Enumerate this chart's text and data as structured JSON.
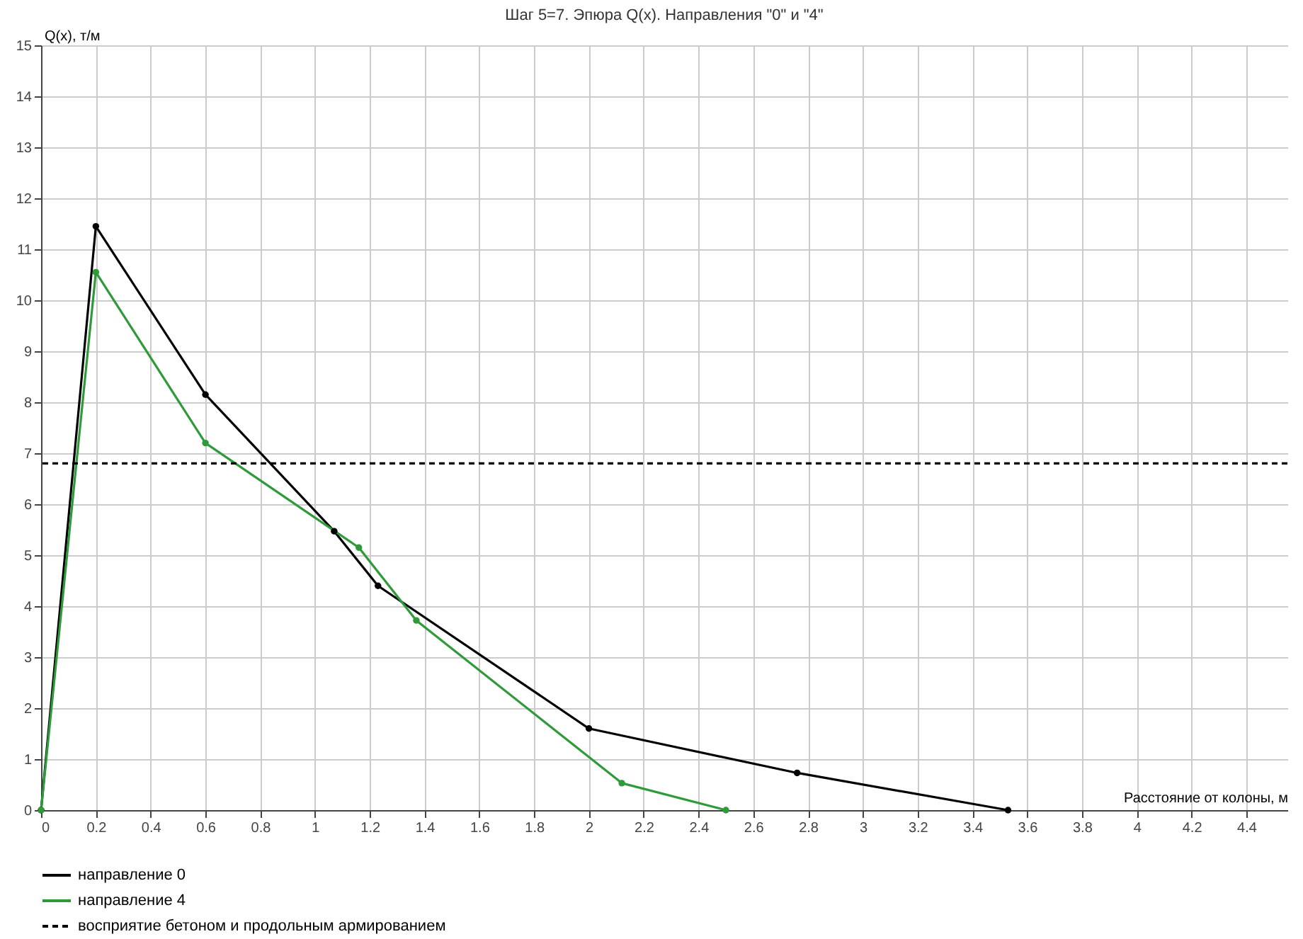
{
  "chart_data": {
    "type": "line",
    "title": "Шаг 5=7. Эпюра Q(x). Направления \"0\" и \"4\"",
    "xlabel": "Расстояние от колоны, м",
    "ylabel": "Q(x), т/м",
    "series": [
      {
        "name": "направление 0",
        "color": "#000000",
        "x": [
          0,
          0.2,
          0.6,
          1.07,
          1.23,
          2.0,
          2.76,
          3.53
        ],
        "values": [
          0,
          11.45,
          8.15,
          5.47,
          4.4,
          1.6,
          0.73,
          0
        ]
      },
      {
        "name": "направление 4",
        "color": "#2e9a3a",
        "x": [
          0,
          0.2,
          0.6,
          1.16,
          1.37,
          2.12,
          2.5
        ],
        "values": [
          0,
          10.55,
          7.2,
          5.15,
          3.72,
          0.53,
          0
        ]
      }
    ],
    "ref_lines": [
      {
        "axis": "y",
        "value": 6.8,
        "label": "восприятие бетоном и продольным армированием",
        "color": "#000000",
        "line_style": "dashed"
      }
    ],
    "xlim": [
      0,
      4.55
    ],
    "xticks": [
      0,
      0.2,
      0.4,
      0.6,
      0.8,
      1,
      1.2,
      1.4,
      1.6,
      1.8,
      2,
      2.2,
      2.4,
      2.6,
      2.8,
      3,
      3.2,
      3.4,
      3.6,
      3.8,
      4,
      4.2,
      4.4
    ],
    "ylim": [
      0,
      15
    ],
    "yticks": [
      0,
      1,
      2,
      3,
      4,
      5,
      6,
      7,
      8,
      9,
      10,
      11,
      12,
      13,
      14,
      15
    ],
    "grid": true,
    "legend": "bottom",
    "marker": "circle",
    "line_style": "solid"
  }
}
